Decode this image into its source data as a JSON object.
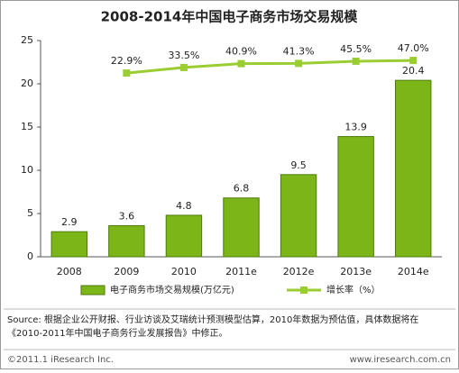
{
  "chart_data": {
    "type": "bar_line",
    "title": "2008-2014年中国电子商务市场交易规模",
    "categories": [
      "2008",
      "2009",
      "2010",
      "2011e",
      "2012e",
      "2013e",
      "2014e"
    ],
    "series": [
      {
        "name": "电子商务市场交易规模(万亿元)",
        "color": "#7cb518",
        "type": "bar",
        "values": [
          2.9,
          3.6,
          4.8,
          6.8,
          9.5,
          13.9,
          20.4
        ]
      },
      {
        "name": "增长率（%）",
        "color": "#9acd32",
        "type": "line",
        "axis": "y2",
        "values": [
          null,
          22.9,
          33.5,
          40.9,
          41.3,
          45.5,
          47.0
        ],
        "value_labels": [
          null,
          "22.9%",
          "33.5%",
          "40.9%",
          "41.3%",
          "45.5%",
          "47.0%"
        ]
      }
    ],
    "ylim": [
      0,
      25
    ],
    "yticks": [
      0,
      5,
      10,
      15,
      20,
      25
    ],
    "y2lim": [
      -328,
      85
    ],
    "source": [
      "Source: 根据企业公开财报、行业访谈及艾瑞统计预测模型估算，2010年数据为预估值，具体数据将在",
      "《2010-2011年中国电子商务行业发展报告》中修正。"
    ],
    "footer_left": "©2011.1 iResearch Inc.",
    "footer_right": "www.iresearch.com.cn"
  }
}
